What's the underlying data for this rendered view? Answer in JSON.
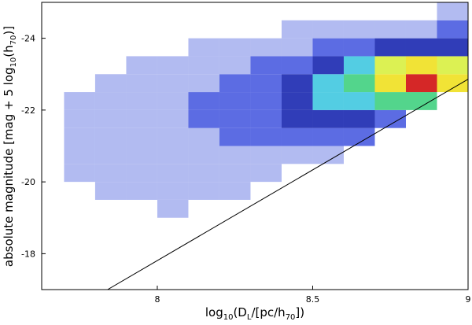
{
  "chart_data": {
    "type": "heatmap",
    "xlabel": [
      "log",
      "10",
      "(D",
      "L",
      "/[pc/h",
      "70",
      "])"
    ],
    "ylabel": [
      "absolute magnitude [mag + 5 log",
      "10",
      "(h",
      "70",
      ")]"
    ],
    "xbins": [
      7.7,
      7.8,
      7.9,
      8.0,
      8.1,
      8.2,
      8.3,
      8.4,
      8.5,
      8.6,
      8.7,
      8.8,
      8.9,
      9.0
    ],
    "ybins": [
      -17,
      -17.5,
      -18,
      -18.5,
      -19,
      -19.5,
      -20,
      -20.5,
      -21,
      -21.5,
      -22,
      -22.5,
      -23,
      -23.5,
      -24,
      -24.5,
      -25
    ],
    "values": [
      [
        0,
        0,
        0,
        0,
        0,
        0,
        0,
        0,
        0,
        0,
        0,
        0,
        0
      ],
      [
        0,
        0,
        0,
        0,
        0,
        0,
        0,
        0,
        0,
        0,
        0,
        0,
        0
      ],
      [
        0,
        0,
        0,
        0,
        0,
        0,
        0,
        0,
        0,
        0,
        0,
        0,
        0
      ],
      [
        0,
        0,
        0,
        0,
        0,
        0,
        0,
        0,
        0,
        0,
        0,
        0,
        0
      ],
      [
        0,
        0,
        0,
        1,
        0,
        0,
        0,
        0,
        0,
        0,
        0,
        0,
        0
      ],
      [
        0,
        1,
        1,
        1,
        1,
        1,
        0,
        0,
        0,
        0,
        0,
        0,
        0
      ],
      [
        1,
        1,
        1,
        1,
        1,
        1,
        1,
        0,
        0,
        0,
        0,
        0,
        0
      ],
      [
        1,
        1,
        1,
        1,
        1,
        1,
        1,
        1,
        1,
        0,
        0,
        0,
        0
      ],
      [
        1,
        1,
        1,
        1,
        1,
        2,
        2,
        2,
        2,
        2,
        0,
        0,
        0
      ],
      [
        1,
        1,
        1,
        1,
        2,
        2,
        2,
        3,
        3,
        3,
        2,
        0,
        0
      ],
      [
        1,
        1,
        1,
        1,
        2,
        2,
        2,
        3,
        4,
        4,
        5,
        5,
        0
      ],
      [
        0,
        1,
        1,
        1,
        1,
        2,
        2,
        3,
        4,
        5,
        7,
        9,
        7
      ],
      [
        0,
        0,
        1,
        1,
        1,
        1,
        2,
        2,
        3,
        4,
        6,
        7,
        6
      ],
      [
        0,
        0,
        0,
        0,
        1,
        1,
        1,
        1,
        2,
        2,
        3,
        3,
        3
      ],
      [
        0,
        0,
        0,
        0,
        0,
        0,
        0,
        1,
        1,
        1,
        1,
        1,
        2
      ],
      [
        0,
        0,
        0,
        0,
        0,
        0,
        0,
        0,
        0,
        0,
        0,
        0,
        1
      ]
    ],
    "colors": [
      "#ffffff",
      "#aab4f0",
      "#4a5ce0",
      "#1a28b0",
      "#40c8e0",
      "#40d080",
      "#d8f040",
      "#f0e020",
      "#f08020",
      "#d01010"
    ],
    "line": {
      "x": [
        7.84,
        9.0
      ],
      "y": [
        -17,
        -22.86
      ],
      "color": "#000000"
    },
    "xlim": [
      7.628,
      9.0
    ],
    "ylim": [
      -17,
      -25
    ],
    "xticks": [
      8,
      8.5,
      9
    ],
    "yticks": [
      -24,
      -22,
      -20,
      -18
    ],
    "grid": false
  }
}
